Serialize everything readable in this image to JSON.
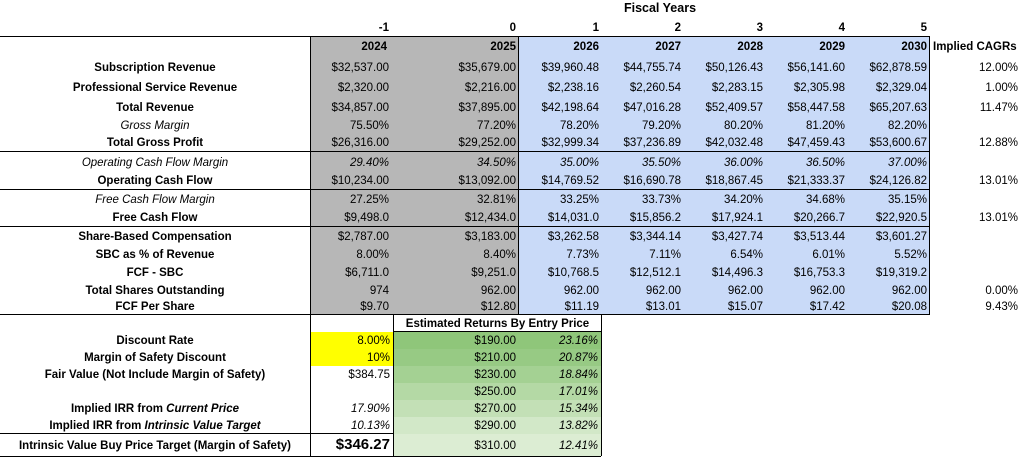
{
  "header": {
    "fiscal_years_label": "Fiscal Years",
    "period_index": [
      "-1",
      "0",
      "1",
      "2",
      "3",
      "4",
      "5"
    ],
    "years": [
      "2024",
      "2025",
      "2026",
      "2027",
      "2028",
      "2029",
      "2030"
    ],
    "cagr_label": "Implied CAGRs"
  },
  "rows": [
    {
      "label": "Subscription Revenue",
      "values": [
        "$32,537.00",
        "$35,679.00",
        "$39,960.48",
        "$44,755.74",
        "$50,126.43",
        "$56,141.60",
        "$62,878.59"
      ],
      "cagr": "12.00%"
    },
    {
      "label": "Professional Service Revenue",
      "values": [
        "$2,320.00",
        "$2,216.00",
        "$2,238.16",
        "$2,260.54",
        "$2,283.15",
        "$2,305.98",
        "$2,329.04"
      ],
      "cagr": "1.00%"
    },
    {
      "label": "Total Revenue",
      "values": [
        "$34,857.00",
        "$37,895.00",
        "$42,198.64",
        "$47,016.28",
        "$52,409.57",
        "$58,447.58",
        "$65,207.63"
      ],
      "cagr": "11.47%"
    },
    {
      "label": "Gross Margin",
      "values": [
        "75.50%",
        "77.20%",
        "78.20%",
        "79.20%",
        "80.20%",
        "81.20%",
        "82.20%"
      ],
      "cagr": ""
    },
    {
      "label": "Total Gross Profit",
      "values": [
        "$26,316.00",
        "$29,252.00",
        "$32,999.34",
        "$37,236.89",
        "$42,032.48",
        "$47,459.43",
        "$53,600.67"
      ],
      "cagr": "12.88%"
    },
    {
      "label": "Operating Cash Flow Margin",
      "values": [
        "29.40%",
        "34.50%",
        "35.00%",
        "35.50%",
        "36.00%",
        "36.50%",
        "37.00%"
      ],
      "cagr": ""
    },
    {
      "label": "Operating Cash Flow",
      "values": [
        "$10,234.00",
        "$13,092.00",
        "$14,769.52",
        "$16,690.78",
        "$18,867.45",
        "$21,333.37",
        "$24,126.82"
      ],
      "cagr": "13.01%"
    },
    {
      "label": "Free Cash Flow Margin",
      "values": [
        "27.25%",
        "32.81%",
        "33.25%",
        "33.73%",
        "34.20%",
        "34.68%",
        "35.15%"
      ],
      "cagr": ""
    },
    {
      "label": "Free Cash Flow",
      "values": [
        "$9,498.0",
        "$12,434.0",
        "$14,031.0",
        "$15,856.2",
        "$17,924.1",
        "$20,266.7",
        "$22,920.5"
      ],
      "cagr": "13.01%"
    },
    {
      "label": "Share-Based Compensation",
      "values": [
        "$2,787.00",
        "$3,183.00",
        "$3,262.58",
        "$3,344.14",
        "$3,427.74",
        "$3,513.44",
        "$3,601.27"
      ],
      "cagr": ""
    },
    {
      "label": "SBC as % of Revenue",
      "values": [
        "8.00%",
        "8.40%",
        "7.73%",
        "7.11%",
        "6.54%",
        "6.01%",
        "5.52%"
      ],
      "cagr": ""
    },
    {
      "label": "FCF - SBC",
      "values": [
        "$6,711.0",
        "$9,251.0",
        "$10,768.5",
        "$12,512.1",
        "$14,496.3",
        "$16,753.3",
        "$19,319.2"
      ],
      "cagr": ""
    },
    {
      "label": "Total Shares Outstanding",
      "values": [
        "974",
        "962.00",
        "962.00",
        "962.00",
        "962.00",
        "962.00",
        "962.00"
      ],
      "cagr": "0.00%"
    },
    {
      "label": "FCF Per Share",
      "values": [
        "$9.70",
        "$12.80",
        "$11.19",
        "$13.01",
        "$15.07",
        "$17.42",
        "$20.08"
      ],
      "cagr": "9.43%"
    }
  ],
  "valuation": {
    "items": [
      {
        "label": "Discount Rate",
        "value": "8.00%"
      },
      {
        "label": "Margin of Safety Discount",
        "value": "10%"
      },
      {
        "label": "Fair Value (Not Include Margin of Safety)",
        "value": "$384.75"
      },
      {
        "label_parts": [
          "Implied IRR from ",
          "Current Price"
        ],
        "value": "17.90%"
      },
      {
        "label_parts": [
          "Implied IRR from ",
          "Intrinsic Value Target"
        ],
        "value": "10.13%"
      },
      {
        "label": "Intrinsic Value Buy Price Target (Margin of Safety)",
        "value": "$346.27"
      }
    ]
  },
  "returns": {
    "title": "Estimated Returns By Entry Price",
    "rows": [
      {
        "price": "$190.00",
        "irr": "23.16%"
      },
      {
        "price": "$210.00",
        "irr": "20.87%"
      },
      {
        "price": "$230.00",
        "irr": "18.84%"
      },
      {
        "price": "$250.00",
        "irr": "17.01%"
      },
      {
        "price": "$270.00",
        "irr": "15.34%"
      },
      {
        "price": "$290.00",
        "irr": "13.82%"
      },
      {
        "price": "$310.00",
        "irr": "12.41%"
      }
    ]
  },
  "colors": {
    "historical_fill": "#b7b7b7",
    "projection_fill": "#c9daf8",
    "input_fill": "#ffff00",
    "returns_gradient": [
      "#8fc67a",
      "#97ca84",
      "#a4d193",
      "#b4d9a5",
      "#c3e0b6",
      "#d2e8c8",
      "#dcedd3"
    ]
  }
}
